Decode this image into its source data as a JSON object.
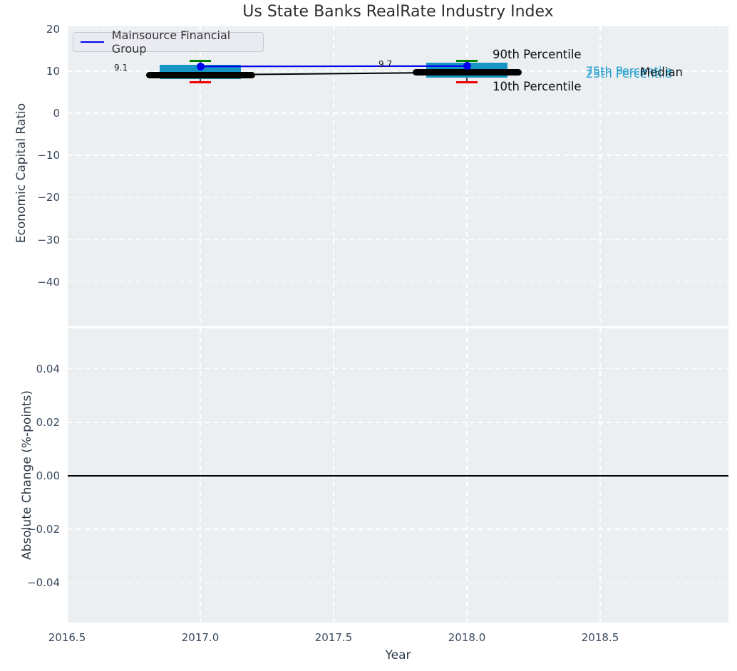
{
  "chart_data": [
    {
      "type": "boxplot+line",
      "title": "Us State Banks RealRate Industry Index",
      "ylabel": "Economic Capital Ratio",
      "legend_label": "Mainsource Financial Group",
      "legend_position": "upper left",
      "grid": true,
      "x": [
        2017,
        2018
      ],
      "xlim": [
        2016.5,
        2019.0
      ],
      "ylim": [
        -50.5,
        20.6
      ],
      "xticks": [
        2016.5,
        2017.0,
        2017.5,
        2018.0,
        2018.5
      ],
      "yticks": [
        "20",
        "10",
        "0",
        "−10",
        "−20",
        "−30",
        "−40"
      ],
      "series": [
        {
          "role": "company",
          "name": "Mainsource Financial Group",
          "type": "line+marker",
          "color": "#0000ee",
          "values": [
            11.1,
            11.2
          ]
        },
        {
          "role": "median",
          "name": "Median",
          "type": "line+thickbar",
          "color": "#000000",
          "values": [
            9.1,
            9.7
          ]
        },
        {
          "role": "p75",
          "name": "75th Percentile",
          "type": "box-top",
          "color": "#1795c5",
          "values": [
            11.5,
            12.0
          ]
        },
        {
          "role": "p25",
          "name": "25th Percentile",
          "type": "box-bottom",
          "color": "#1795c5",
          "values": [
            8.1,
            8.4
          ]
        },
        {
          "role": "p90",
          "name": "90th Percentile",
          "type": "whisker-cap",
          "color": "#008000",
          "values": [
            12.4,
            12.4
          ]
        },
        {
          "role": "p10",
          "name": "10th Percentile",
          "type": "whisker-cap",
          "color": "#ee0000",
          "values": [
            7.4,
            7.4
          ]
        }
      ],
      "annotations": {
        "label_2017": "9.1",
        "label_2018": "9.7",
        "p90": "90th Percentile",
        "p10": "10th Percentile",
        "p75": "75th Percentile",
        "p25": "25th Percentile",
        "median": "Median"
      }
    },
    {
      "type": "line",
      "ylabel": "Absolute Change (%-points)",
      "xlabel": "Year",
      "grid": true,
      "xticks": [
        2016.5,
        2017.0,
        2017.5,
        2018.0,
        2018.5
      ],
      "xticklabels": [
        "2016.5",
        "2017.0",
        "2017.5",
        "2018.0",
        "2018.5"
      ],
      "yticks": [
        "0.04",
        "0.02",
        "0.00",
        "−0.02",
        "−0.04"
      ],
      "ylim": [
        -0.055,
        0.055
      ],
      "zero_line": 0.0
    }
  ]
}
